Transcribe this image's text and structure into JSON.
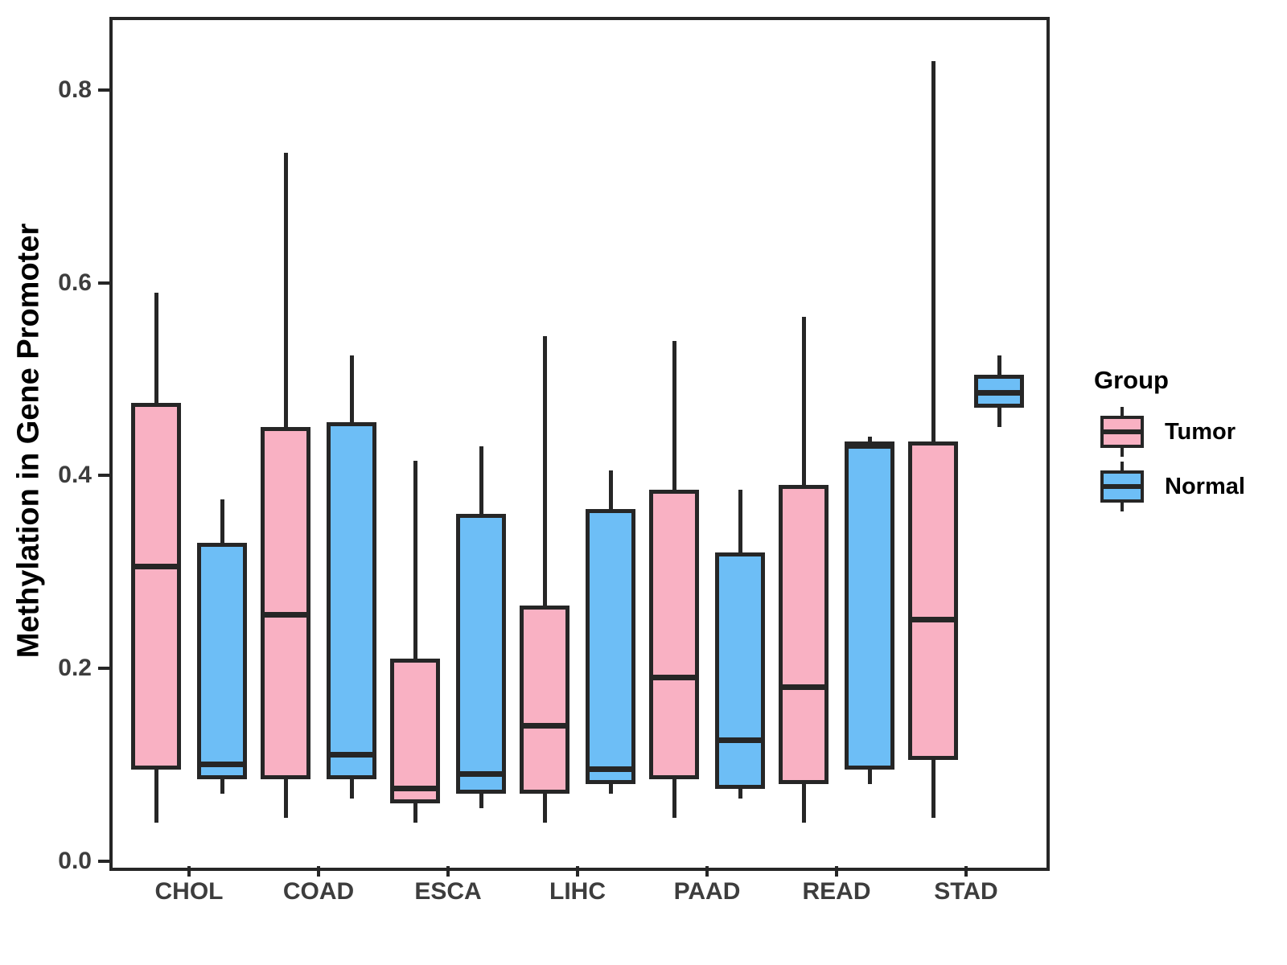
{
  "figure": {
    "background": "#ffffff"
  },
  "legend": {
    "title": "Group",
    "items": [
      {
        "label": "Tumor",
        "color": "#F9B1C3"
      },
      {
        "label": "Normal",
        "color": "#6DBEF6"
      }
    ]
  },
  "chart_data": {
    "type": "boxplot",
    "title": "",
    "xlabel": "",
    "ylabel": "Methylation in Gene Promoter",
    "categories": [
      "CHOL",
      "COAD",
      "ESCA",
      "LIHC",
      "PAAD",
      "READ",
      "STAD"
    ],
    "groups": [
      "Tumor",
      "Normal"
    ],
    "group_colors": {
      "Tumor": "#F9B1C3",
      "Normal": "#6DBEF6"
    },
    "line_color": "#262626",
    "yticks": [
      0.0,
      0.2,
      0.4,
      0.6,
      0.8
    ],
    "ytick_labels": [
      "0.0",
      "0.2",
      "0.4",
      "0.6",
      "0.8"
    ],
    "ylim": [
      0,
      0.874
    ],
    "grid": "off",
    "legend_position": "right",
    "series": [
      {
        "category": "CHOL",
        "group": "Tumor",
        "whisker_low": 0.04,
        "q1": 0.095,
        "median": 0.305,
        "q3": 0.475,
        "whisker_high": 0.59
      },
      {
        "category": "CHOL",
        "group": "Normal",
        "whisker_low": 0.07,
        "q1": 0.085,
        "median": 0.1,
        "q3": 0.33,
        "whisker_high": 0.375
      },
      {
        "category": "COAD",
        "group": "Tumor",
        "whisker_low": 0.045,
        "q1": 0.085,
        "median": 0.255,
        "q3": 0.45,
        "whisker_high": 0.735
      },
      {
        "category": "COAD",
        "group": "Normal",
        "whisker_low": 0.065,
        "q1": 0.085,
        "median": 0.11,
        "q3": 0.455,
        "whisker_high": 0.525
      },
      {
        "category": "ESCA",
        "group": "Tumor",
        "whisker_low": 0.04,
        "q1": 0.06,
        "median": 0.075,
        "q3": 0.21,
        "whisker_high": 0.415
      },
      {
        "category": "ESCA",
        "group": "Normal",
        "whisker_low": 0.055,
        "q1": 0.07,
        "median": 0.09,
        "q3": 0.36,
        "whisker_high": 0.43
      },
      {
        "category": "LIHC",
        "group": "Tumor",
        "whisker_low": 0.04,
        "q1": 0.07,
        "median": 0.14,
        "q3": 0.265,
        "whisker_high": 0.545
      },
      {
        "category": "LIHC",
        "group": "Normal",
        "whisker_low": 0.07,
        "q1": 0.08,
        "median": 0.095,
        "q3": 0.365,
        "whisker_high": 0.405
      },
      {
        "category": "PAAD",
        "group": "Tumor",
        "whisker_low": 0.045,
        "q1": 0.085,
        "median": 0.19,
        "q3": 0.385,
        "whisker_high": 0.54
      },
      {
        "category": "PAAD",
        "group": "Normal",
        "whisker_low": 0.065,
        "q1": 0.075,
        "median": 0.125,
        "q3": 0.32,
        "whisker_high": 0.385
      },
      {
        "category": "READ",
        "group": "Tumor",
        "whisker_low": 0.04,
        "q1": 0.08,
        "median": 0.18,
        "q3": 0.39,
        "whisker_high": 0.565
      },
      {
        "category": "READ",
        "group": "Normal",
        "whisker_low": 0.08,
        "q1": 0.095,
        "median": 0.43,
        "q3": 0.435,
        "whisker_high": 0.44
      },
      {
        "category": "STAD",
        "group": "Tumor",
        "whisker_low": 0.045,
        "q1": 0.105,
        "median": 0.25,
        "q3": 0.435,
        "whisker_high": 0.83
      },
      {
        "category": "STAD",
        "group": "Normal",
        "whisker_low": 0.45,
        "q1": 0.47,
        "median": 0.485,
        "q3": 0.505,
        "whisker_high": 0.525
      }
    ]
  }
}
